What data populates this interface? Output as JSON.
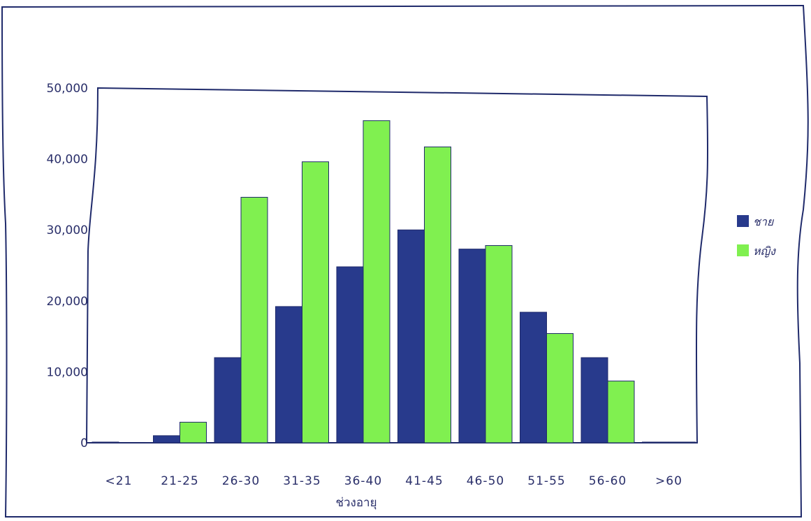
{
  "chart_data": {
    "type": "bar",
    "title": "",
    "xlabel": "ช่วงอายุ",
    "ylabel": "",
    "categories": [
      "<21",
      "21-25",
      "26-30",
      "31-35",
      "36-40",
      "41-45",
      "46-50",
      "51-55",
      "56-60",
      ">60"
    ],
    "y_ticks": [
      "0",
      "10,000",
      "20,000",
      "30,000",
      "40,000",
      "50,000"
    ],
    "ylim": [
      0,
      50000
    ],
    "grid": false,
    "legend_position": "right",
    "series": [
      {
        "name": "ชาย",
        "color": "#283a8c",
        "values": [
          100,
          1000,
          12000,
          19200,
          24800,
          30000,
          27300,
          18400,
          12000,
          100
        ]
      },
      {
        "name": "หญิง",
        "color": "#80f050",
        "values": [
          50,
          2900,
          34600,
          39600,
          45400,
          41700,
          27800,
          15400,
          8700,
          100
        ]
      }
    ]
  }
}
